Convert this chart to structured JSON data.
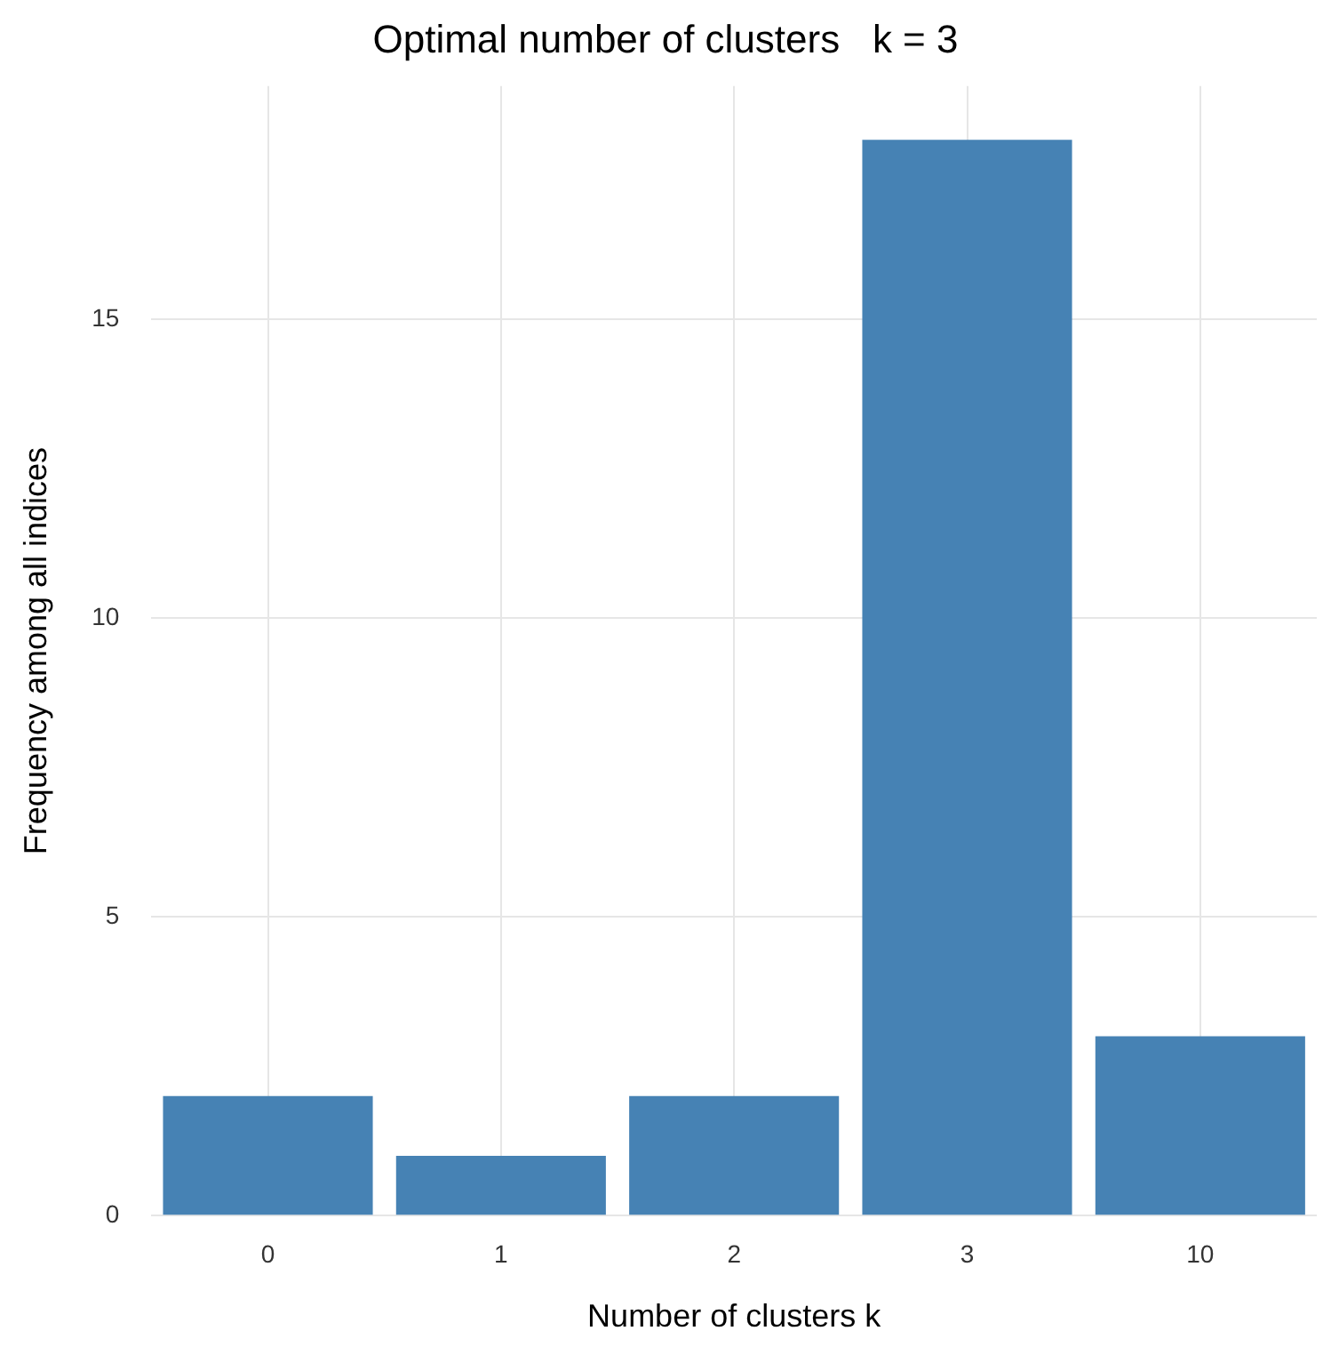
{
  "chart_data": {
    "type": "bar",
    "title": "Optimal number of clusters   k = 3",
    "xlabel": "Number of clusters k",
    "ylabel": "Frequency among all indices",
    "categories": [
      "0",
      "1",
      "2",
      "3",
      "10"
    ],
    "values": [
      2,
      1,
      2,
      18,
      3
    ],
    "color": "#4682b4",
    "ylim": [
      0,
      18.9
    ],
    "yticks": [
      0,
      5,
      10,
      15
    ],
    "grid": true
  }
}
